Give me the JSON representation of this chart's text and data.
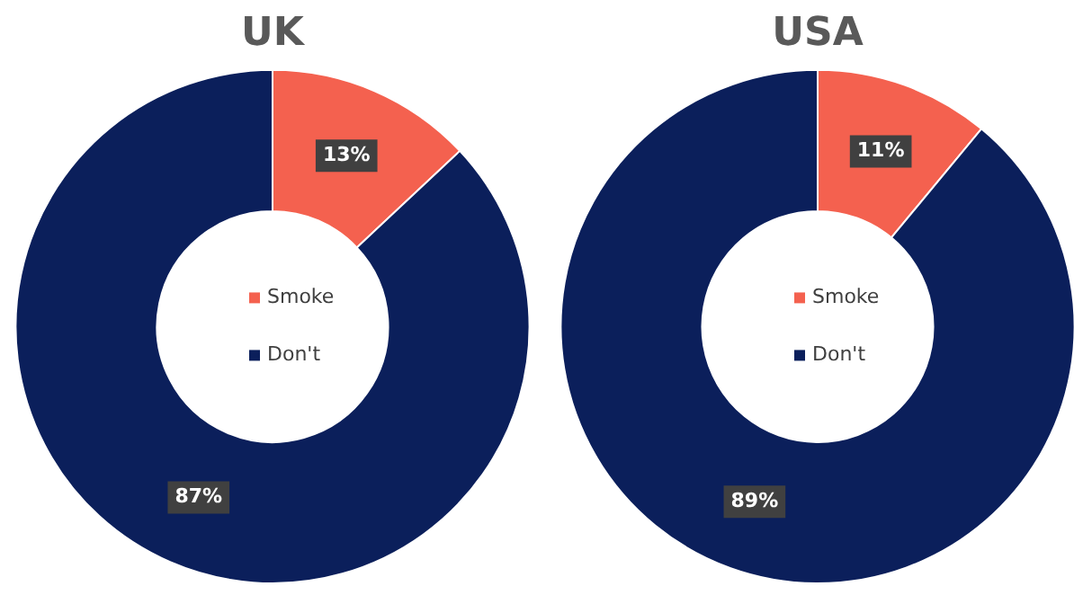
{
  "chart_data": [
    {
      "type": "donut",
      "title": "UK",
      "categories": [
        "Smoke",
        "Don't"
      ],
      "values": [
        13,
        87
      ],
      "colors": [
        "#f4614f",
        "#0b1f5b"
      ],
      "value_labels": [
        "13%",
        "87%"
      ],
      "legend": "center"
    },
    {
      "type": "donut",
      "title": "USA",
      "categories": [
        "Smoke",
        "Don't"
      ],
      "values": [
        11,
        89
      ],
      "colors": [
        "#f4614f",
        "#0b1f5b"
      ],
      "value_labels": [
        "11%",
        "89%"
      ],
      "legend": "center"
    }
  ]
}
